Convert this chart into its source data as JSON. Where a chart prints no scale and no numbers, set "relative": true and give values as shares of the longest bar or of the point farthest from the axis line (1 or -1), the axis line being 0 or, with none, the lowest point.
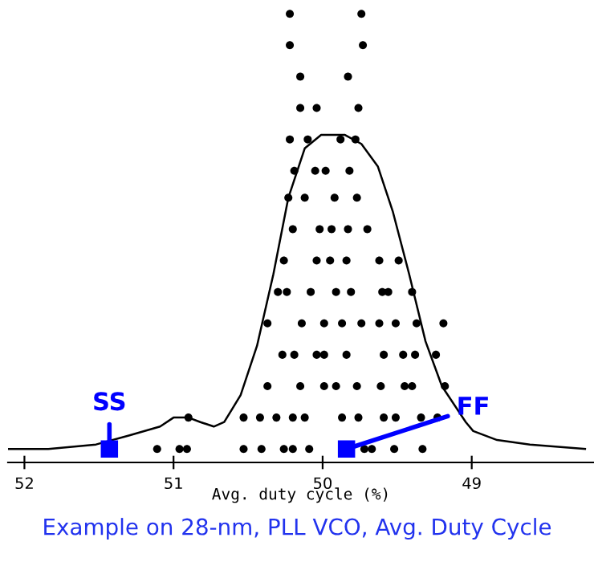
{
  "chart_data": {
    "type": "scatter",
    "xlabel": "Avg. duty cycle (%)",
    "relative": true,
    "tick_labels": "x",
    "grid": false,
    "legend": false,
    "xlim": [
      52.11,
      48.18
    ],
    "xticks": [
      52,
      51,
      50,
      49
    ],
    "annotations": [
      "Example on 28-nm, PLL VCO, Avg. Duty Cycle"
    ],
    "series": [
      {
        "color": "#000000",
        "marker": "circle",
        "x": [
          51.11,
          50.96,
          50.91,
          50.53,
          50.41,
          50.26,
          50.2,
          50.09,
          49.72,
          49.67,
          49.52,
          49.33,
          50.9,
          50.53,
          50.42,
          50.31,
          50.2,
          50.12,
          49.87,
          49.76,
          49.59,
          49.51,
          49.34,
          49.23,
          50.37,
          50.15,
          49.99,
          49.91,
          49.77,
          49.61,
          49.45,
          49.4,
          49.18,
          50.27,
          50.19,
          50.04,
          49.99,
          49.84,
          49.59,
          49.46,
          49.38,
          49.24,
          50.37,
          50.14,
          49.99,
          49.87,
          49.74,
          49.62,
          49.51,
          49.37,
          49.19,
          50.3,
          50.24,
          50.08,
          49.91,
          49.81,
          49.6,
          49.56,
          49.4,
          50.26,
          50.04,
          49.95,
          49.84,
          49.62,
          49.49,
          50.2,
          50.02,
          49.94,
          49.83,
          49.7,
          50.23,
          50.12,
          49.92,
          49.77,
          50.19,
          50.05,
          49.98,
          49.82,
          50.22,
          50.1,
          49.88,
          49.78,
          50.15,
          50.04,
          49.76,
          50.15,
          49.83,
          50.22,
          49.73,
          50.22,
          49.74
        ],
        "values": [
          0.03,
          0.03,
          0.03,
          0.03,
          0.03,
          0.03,
          0.03,
          0.03,
          0.03,
          0.03,
          0.03,
          0.03,
          0.1,
          0.1,
          0.1,
          0.1,
          0.1,
          0.1,
          0.1,
          0.1,
          0.1,
          0.1,
          0.1,
          0.1,
          0.17,
          0.17,
          0.17,
          0.17,
          0.17,
          0.17,
          0.17,
          0.17,
          0.17,
          0.24,
          0.24,
          0.24,
          0.24,
          0.24,
          0.24,
          0.24,
          0.24,
          0.24,
          0.31,
          0.31,
          0.31,
          0.31,
          0.31,
          0.31,
          0.31,
          0.31,
          0.31,
          0.38,
          0.38,
          0.38,
          0.38,
          0.38,
          0.38,
          0.38,
          0.38,
          0.45,
          0.45,
          0.45,
          0.45,
          0.45,
          0.45,
          0.52,
          0.52,
          0.52,
          0.52,
          0.52,
          0.59,
          0.59,
          0.59,
          0.59,
          0.65,
          0.65,
          0.65,
          0.65,
          0.72,
          0.72,
          0.72,
          0.72,
          0.79,
          0.79,
          0.79,
          0.86,
          0.86,
          0.93,
          0.93,
          1.0,
          1.0
        ]
      },
      {
        "type": "line",
        "color": "#000000",
        "marker": "none",
        "line_style": "solid",
        "x": [
          52.11,
          51.84,
          51.52,
          51.3,
          51.09,
          51.0,
          50.9,
          50.82,
          50.73,
          50.66,
          50.55,
          50.44,
          50.33,
          50.23,
          50.12,
          50.01,
          49.85,
          49.74,
          49.63,
          49.53,
          49.42,
          49.31,
          49.2,
          49.04,
          48.99,
          48.83,
          48.61,
          48.24
        ],
        "values": [
          0.03,
          0.03,
          0.04,
          0.06,
          0.08,
          0.1,
          0.1,
          0.09,
          0.08,
          0.09,
          0.15,
          0.26,
          0.42,
          0.59,
          0.7,
          0.73,
          0.73,
          0.71,
          0.66,
          0.56,
          0.42,
          0.27,
          0.17,
          0.09,
          0.07,
          0.05,
          0.04,
          0.03
        ]
      },
      {
        "name": "SS",
        "color": "#0000ff",
        "marker": "square",
        "x": [
          51.43
        ],
        "values": [
          0.03
        ]
      },
      {
        "name": "FF",
        "color": "#0000ff",
        "marker": "square",
        "x": [
          49.84
        ],
        "values": [
          0.03
        ]
      }
    ]
  }
}
